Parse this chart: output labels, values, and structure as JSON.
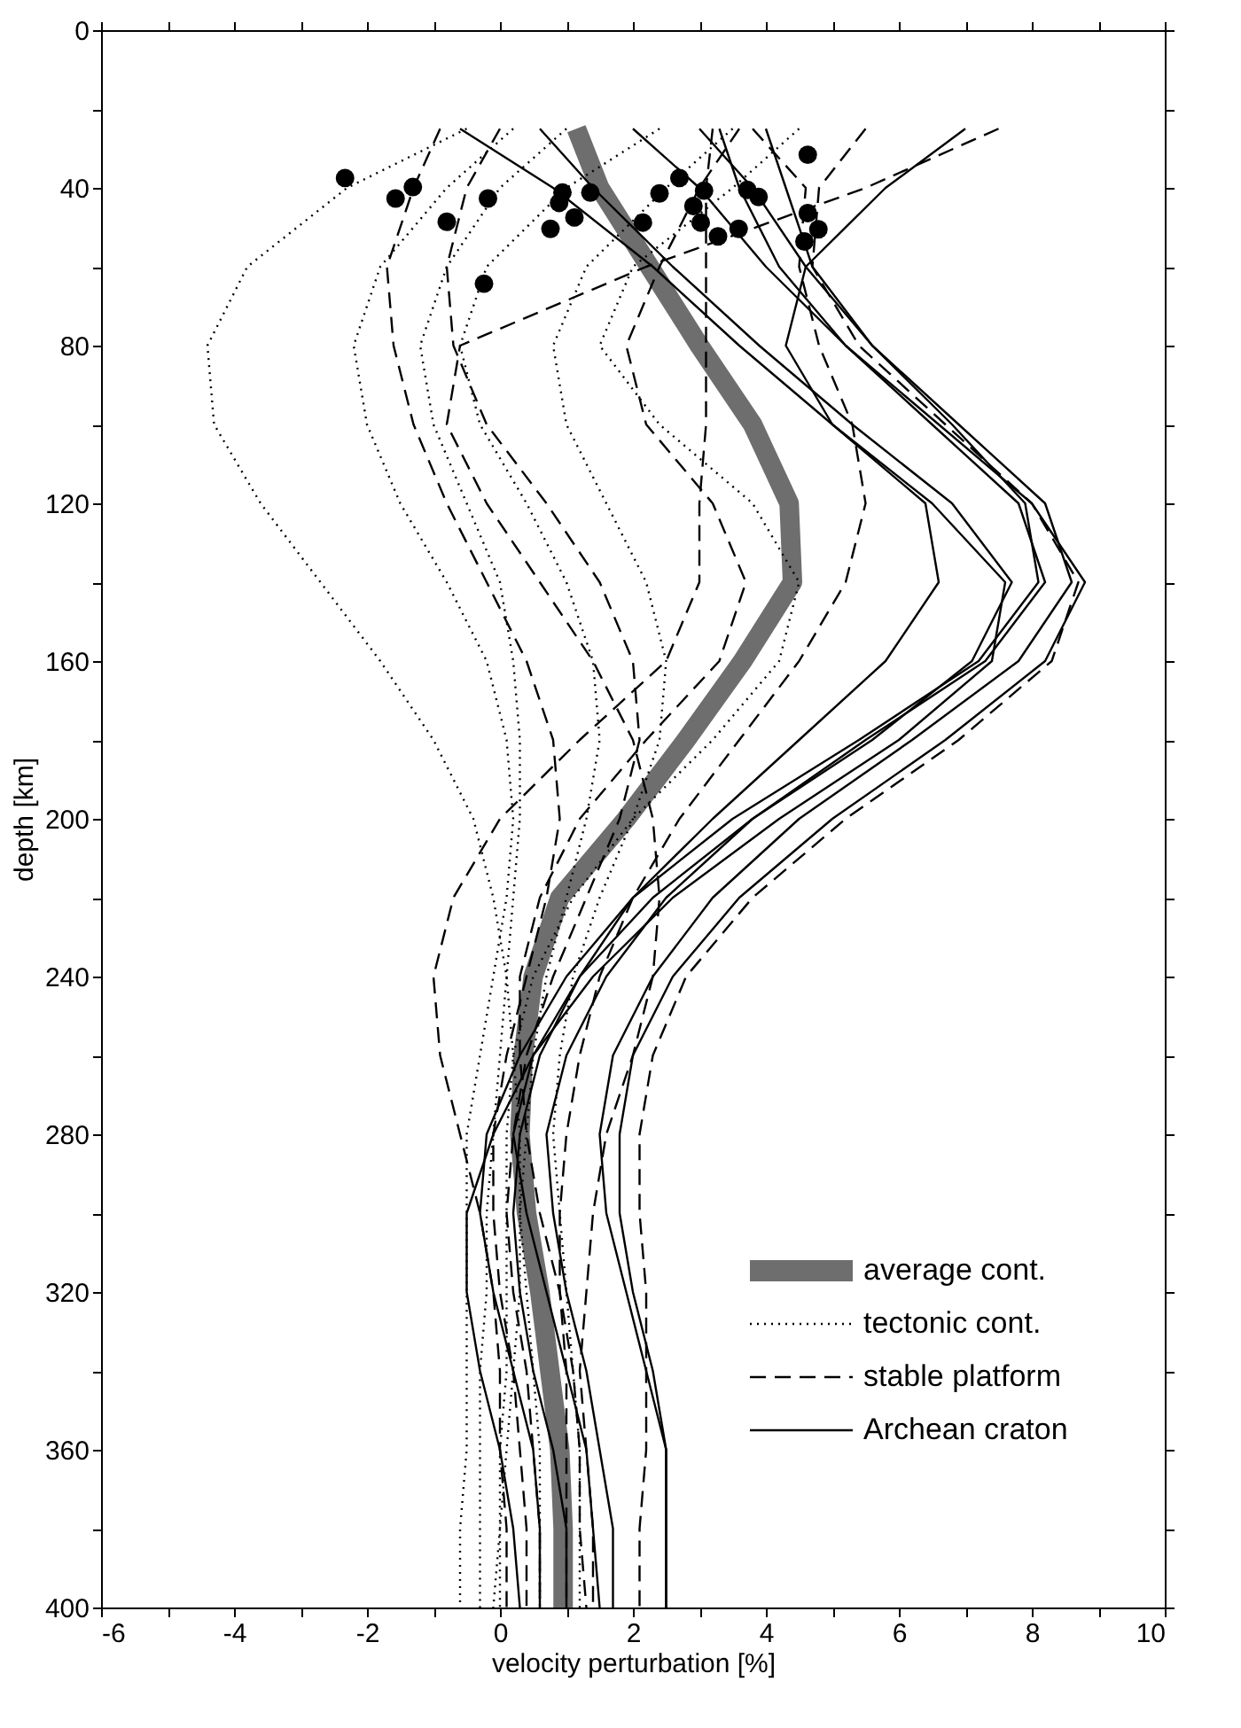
{
  "chart_data": {
    "type": "line",
    "xlabel": "velocity perturbation [%]",
    "ylabel": "depth [km]",
    "xlim": [
      -6,
      10
    ],
    "ylim": [
      400,
      0
    ],
    "xticks": [
      -6,
      {
        "value": -5,
        "label": null
      },
      -4,
      {
        "value": -3,
        "label": null
      },
      -2,
      {
        "value": -1,
        "label": null
      },
      0,
      {
        "value": 1,
        "label": null
      },
      2,
      {
        "value": 3,
        "label": null
      },
      4,
      {
        "value": 5,
        "label": null
      },
      6,
      {
        "value": 7,
        "label": null
      },
      8,
      {
        "value": 9,
        "label": null
      },
      10
    ],
    "yticks": [
      0,
      {
        "value": 20,
        "label": null
      },
      40,
      {
        "value": 60,
        "label": null
      },
      80,
      {
        "value": 100,
        "label": null
      },
      120,
      {
        "value": 140,
        "label": null
      },
      160,
      {
        "value": 180,
        "label": null
      },
      200,
      {
        "value": 220,
        "label": null
      },
      240,
      {
        "value": 260,
        "label": null
      },
      280,
      {
        "value": 300,
        "label": null
      },
      320,
      {
        "value": 340,
        "label": null
      },
      360,
      {
        "value": 380,
        "label": null
      },
      400
    ],
    "grid": false,
    "legend": "bottom right",
    "series": [
      {
        "name": "average cont.",
        "line_style": "solid",
        "color": "#6e6e6e",
        "x": [
          1.15,
          1.5,
          2.25,
          3.0,
          3.8,
          4.35,
          4.4,
          3.65,
          2.8,
          1.9,
          0.9,
          0.5,
          0.35,
          0.3,
          0.4,
          0.6,
          0.75,
          0.9,
          0.95,
          0.95
        ],
        "values": [
          25,
          40,
          60,
          80,
          100,
          120,
          140,
          160,
          180,
          200,
          220,
          240,
          260,
          280,
          300,
          320,
          340,
          360,
          380,
          400
        ]
      },
      {
        "name": "tectonic cont.",
        "line_style": "dotted",
        "color": "#000000",
        "x": [
          -0.5,
          -2.3,
          -3.8,
          -4.4,
          -4.3,
          -3.6,
          -2.7,
          -1.8,
          -1.0,
          -0.4,
          -0.1,
          0.1,
          0.2,
          0.3,
          0.3,
          0.3,
          0.2,
          0.1,
          0.0,
          -0.1
        ],
        "values": [
          25,
          40,
          60,
          80,
          100,
          120,
          140,
          160,
          180,
          200,
          220,
          240,
          260,
          280,
          300,
          320,
          340,
          360,
          380,
          400
        ]
      },
      {
        "line_style": "dotted",
        "color": "#000000",
        "x": [
          0.2,
          -0.8,
          -1.8,
          -2.2,
          -2.0,
          -1.5,
          -0.8,
          -0.2,
          0.1,
          0.2,
          0.1,
          -0.1,
          -0.3,
          -0.5,
          -0.5,
          -0.5,
          -0.5,
          -0.5,
          -0.6,
          -0.6
        ],
        "values": [
          25,
          40,
          60,
          80,
          100,
          120,
          140,
          160,
          180,
          200,
          220,
          240,
          260,
          280,
          300,
          320,
          340,
          360,
          380,
          400
        ]
      },
      {
        "line_style": "dotted",
        "color": "#000000",
        "x": [
          1.0,
          0.0,
          -0.8,
          -1.2,
          -1.0,
          -0.5,
          0.0,
          0.2,
          0.3,
          0.3,
          0.2,
          0.1,
          0.0,
          -0.1,
          -0.2,
          -0.2,
          -0.3,
          -0.3,
          -0.3,
          -0.3
        ],
        "values": [
          25,
          40,
          60,
          80,
          100,
          120,
          140,
          160,
          180,
          200,
          220,
          240,
          260,
          280,
          300,
          320,
          340,
          360,
          380,
          400
        ]
      },
      {
        "line_style": "dotted",
        "color": "#000000",
        "x": [
          2.4,
          1.0,
          -0.2,
          -0.6,
          -0.3,
          0.4,
          1.0,
          1.4,
          1.5,
          1.3,
          1.0,
          0.7,
          0.5,
          0.4,
          0.3,
          0.4,
          0.5,
          0.6,
          0.6,
          0.6
        ],
        "values": [
          25,
          40,
          60,
          80,
          100,
          120,
          140,
          160,
          180,
          200,
          220,
          240,
          260,
          280,
          300,
          320,
          340,
          360,
          380,
          400
        ]
      },
      {
        "line_style": "dotted",
        "color": "#000000",
        "x": [
          3.5,
          2.5,
          1.3,
          0.8,
          1.0,
          1.6,
          2.2,
          2.5,
          2.4,
          2.0,
          1.5,
          1.1,
          0.9,
          0.8,
          0.9,
          1.0,
          1.1,
          1.2,
          1.2,
          1.2
        ],
        "values": [
          25,
          40,
          60,
          80,
          100,
          120,
          140,
          160,
          180,
          200,
          220,
          240,
          260,
          280,
          300,
          320,
          340,
          360,
          380,
          400
        ]
      },
      {
        "line_style": "dotted",
        "color": "#000000",
        "x": [
          4.5,
          3.5,
          2.0,
          1.5,
          2.4,
          3.8,
          4.5,
          4.2,
          3.2,
          2.0,
          1.1,
          0.5,
          0.2,
          0.1,
          0.1,
          0.1,
          0.1,
          0.0,
          0.0,
          0.0
        ],
        "values": [
          25,
          40,
          60,
          80,
          100,
          120,
          140,
          160,
          180,
          200,
          220,
          240,
          260,
          280,
          300,
          320,
          340,
          360,
          380,
          400
        ]
      },
      {
        "name": "stable platform",
        "line_style": "dashed",
        "color": "#000000",
        "x": [
          7.5,
          5.5,
          2.2,
          -0.6,
          -0.8,
          -0.2,
          0.6,
          1.4,
          2.0,
          2.3,
          2.4,
          2.3,
          2.0,
          1.6,
          1.4,
          1.3,
          1.2,
          1.3,
          1.4,
          1.4
        ],
        "values": [
          25,
          40,
          60,
          80,
          100,
          120,
          140,
          160,
          180,
          200,
          220,
          240,
          260,
          280,
          300,
          320,
          340,
          360,
          380,
          400
        ]
      },
      {
        "line_style": "dashed",
        "color": "#000000",
        "x": [
          -0.9,
          -1.3,
          -1.7,
          -1.6,
          -1.3,
          -0.8,
          -0.2,
          0.4,
          0.8,
          0.9,
          0.7,
          0.4,
          0.1,
          -0.1,
          -0.1,
          0.0,
          0.2,
          0.3,
          0.4,
          0.4
        ],
        "values": [
          25,
          40,
          60,
          80,
          100,
          120,
          140,
          160,
          180,
          200,
          220,
          240,
          260,
          280,
          300,
          320,
          340,
          360,
          380,
          400
        ]
      },
      {
        "line_style": "dashed",
        "color": "#000000",
        "x": [
          0.0,
          -0.5,
          -0.8,
          -0.7,
          -0.2,
          0.7,
          1.5,
          2.0,
          2.1,
          1.8,
          1.3,
          0.8,
          0.4,
          0.2,
          0.1,
          0.2,
          0.4,
          0.5,
          0.6,
          0.6
        ],
        "values": [
          25,
          40,
          60,
          80,
          100,
          120,
          140,
          160,
          180,
          200,
          220,
          240,
          260,
          280,
          300,
          320,
          340,
          360,
          380,
          400
        ]
      },
      {
        "line_style": "dashed",
        "color": "#000000",
        "x": [
          3.2,
          3.1,
          3.1,
          3.1,
          3.1,
          3.0,
          3.0,
          2.5,
          1.2,
          0.0,
          -0.7,
          -1.0,
          -0.9,
          -0.6,
          -0.3,
          -0.1,
          0.0,
          0.0,
          0.1,
          0.1
        ],
        "values": [
          25,
          40,
          60,
          80,
          100,
          120,
          140,
          160,
          180,
          200,
          220,
          240,
          260,
          280,
          300,
          320,
          340,
          360,
          380,
          400
        ]
      },
      {
        "line_style": "dashed",
        "color": "#000000",
        "x": [
          3.6,
          3.0,
          2.4,
          1.9,
          2.2,
          3.2,
          3.7,
          3.3,
          2.2,
          1.2,
          0.6,
          0.3,
          0.3,
          0.4,
          0.6,
          0.9,
          1.1,
          1.2,
          1.2,
          1.3
        ],
        "values": [
          25,
          40,
          60,
          80,
          100,
          120,
          140,
          160,
          180,
          200,
          220,
          240,
          260,
          280,
          300,
          320,
          340,
          360,
          380,
          400
        ]
      },
      {
        "line_style": "dashed",
        "color": "#000000",
        "x": [
          5.5,
          4.8,
          4.7,
          5.4,
          6.7,
          8.0,
          8.7,
          8.3,
          6.9,
          5.2,
          3.8,
          2.8,
          2.3,
          2.1,
          2.1,
          2.2,
          2.2,
          2.2,
          2.1,
          2.1
        ],
        "values": [
          25,
          40,
          60,
          80,
          100,
          120,
          140,
          160,
          180,
          200,
          220,
          240,
          260,
          280,
          300,
          320,
          340,
          360,
          380,
          400
        ]
      },
      {
        "line_style": "dashed",
        "color": "#000000",
        "x": [
          3.8,
          4.6,
          4.5,
          4.8,
          5.3,
          5.5,
          5.2,
          4.5,
          3.6,
          2.7,
          2.0,
          1.5,
          1.2,
          1.0,
          0.9,
          0.9,
          1.0,
          1.0,
          1.0,
          1.0
        ],
        "values": [
          25,
          40,
          60,
          80,
          100,
          120,
          140,
          160,
          180,
          200,
          220,
          240,
          260,
          280,
          300,
          320,
          340,
          360,
          380,
          400
        ]
      },
      {
        "name": "Archean craton",
        "line_style": "solid",
        "color": "#000000",
        "x": [
          2.0,
          3.0,
          4.0,
          5.2,
          6.5,
          7.8,
          8.2,
          7.3,
          5.5,
          3.8,
          2.5,
          1.6,
          1.0,
          0.7,
          0.8,
          1.0,
          1.3,
          1.5,
          1.7,
          1.7
        ],
        "values": [
          25,
          40,
          60,
          80,
          100,
          120,
          140,
          160,
          180,
          200,
          220,
          240,
          260,
          280,
          300,
          320,
          340,
          360,
          380,
          400
        ]
      },
      {
        "line_style": "solid",
        "color": "#000000",
        "x": [
          3.0,
          3.8,
          4.6,
          5.6,
          6.9,
          8.2,
          8.6,
          7.8,
          6.2,
          4.5,
          3.2,
          2.3,
          1.7,
          1.5,
          1.6,
          1.9,
          2.2,
          2.5,
          2.5,
          2.5
        ],
        "values": [
          25,
          40,
          60,
          80,
          100,
          120,
          140,
          160,
          180,
          200,
          220,
          240,
          260,
          280,
          300,
          320,
          340,
          360,
          380,
          400
        ]
      },
      {
        "line_style": "solid",
        "color": "#000000",
        "x": [
          4.0,
          4.3,
          4.7,
          5.6,
          6.8,
          7.9,
          8.1,
          7.2,
          5.4,
          3.5,
          2.0,
          1.0,
          0.3,
          -0.2,
          -0.3,
          -0.1,
          0.2,
          0.5,
          0.6,
          0.6
        ],
        "values": [
          25,
          40,
          60,
          80,
          100,
          120,
          140,
          160,
          180,
          200,
          220,
          240,
          260,
          280,
          300,
          320,
          340,
          360,
          380,
          400
        ]
      },
      {
        "line_style": "solid",
        "color": "#000000",
        "x": [
          7.0,
          5.8,
          4.6,
          4.3,
          5.0,
          6.4,
          6.6,
          5.8,
          4.5,
          3.2,
          2.0,
          1.2,
          0.6,
          0.3,
          0.2,
          0.3,
          0.5,
          0.8,
          1.0,
          1.0
        ],
        "values": [
          25,
          40,
          60,
          80,
          100,
          120,
          140,
          160,
          180,
          200,
          220,
          240,
          260,
          280,
          300,
          320,
          340,
          360,
          380,
          400
        ]
      },
      {
        "line_style": "solid",
        "color": "#000000",
        "x": [
          -0.6,
          0.8,
          2.3,
          3.6,
          5.0,
          6.5,
          7.6,
          7.4,
          6.0,
          4.2,
          2.6,
          1.4,
          0.5,
          -0.1,
          -0.5,
          -0.5,
          -0.3,
          0.0,
          0.2,
          0.3
        ],
        "values": [
          25,
          40,
          60,
          80,
          100,
          120,
          140,
          160,
          180,
          200,
          220,
          240,
          260,
          280,
          300,
          320,
          340,
          360,
          380,
          400
        ]
      },
      {
        "line_style": "solid",
        "color": "#000000",
        "x": [
          3.3,
          3.6,
          4.2,
          5.2,
          6.6,
          8.0,
          8.8,
          8.2,
          6.7,
          5.0,
          3.6,
          2.6,
          2.0,
          1.8,
          1.8,
          2.0,
          2.3,
          2.5,
          2.5,
          2.5
        ],
        "values": [
          25,
          40,
          60,
          80,
          100,
          120,
          140,
          160,
          180,
          200,
          220,
          240,
          260,
          280,
          300,
          320,
          340,
          360,
          380,
          400
        ]
      },
      {
        "line_style": "solid",
        "color": "#000000",
        "x": [
          0.6,
          1.4,
          2.6,
          3.9,
          5.3,
          6.8,
          7.7,
          7.1,
          5.6,
          3.8,
          2.3,
          1.2,
          0.5,
          0.2,
          0.4,
          0.7,
          1.0,
          1.3,
          1.4,
          1.5
        ],
        "values": [
          25,
          40,
          60,
          80,
          100,
          120,
          140,
          160,
          180,
          200,
          220,
          240,
          260,
          280,
          300,
          320,
          340,
          360,
          380,
          400
        ]
      },
      {
        "type": "scatter",
        "marker": "circle",
        "color": "#000000",
        "x": [
          -2.33,
          -1.57,
          -1.31,
          -0.8,
          -0.18,
          -0.24,
          0.76,
          0.89,
          0.94,
          1.12,
          1.36,
          2.15,
          2.4,
          2.7,
          2.91,
          3.07,
          3.02,
          3.28,
          3.59,
          3.72,
          3.89,
          4.63,
          4.63,
          4.79,
          4.58
        ],
        "values": [
          37.5,
          42.7,
          39.8,
          48.6,
          42.7,
          64.3,
          50.4,
          43.8,
          41.2,
          47.5,
          41.2,
          48.8,
          41.4,
          37.5,
          44.6,
          40.7,
          48.8,
          52.3,
          50.4,
          40.5,
          42.3,
          31.6,
          46.4,
          50.5,
          53.6
        ]
      }
    ]
  }
}
